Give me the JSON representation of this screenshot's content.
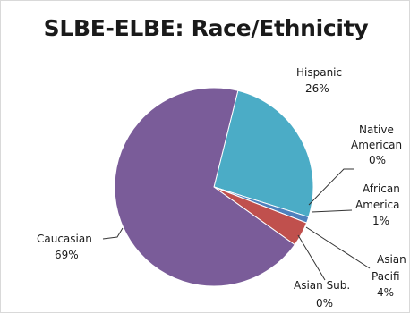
{
  "chart_data": {
    "type": "pie",
    "title": "SLBE-ELBE: Race/Ethnicity",
    "categories": [
      "Hispanic",
      "Native American",
      "African American",
      "Asian Sub.",
      "Asian Pacific",
      "Caucasian"
    ],
    "values": [
      26,
      0,
      1,
      0,
      4,
      69
    ],
    "value_labels": [
      "26%",
      "0%",
      "1%",
      "0%",
      "4%",
      "69%"
    ],
    "colors": [
      "#4bacc6",
      "#8064a2",
      "#4f81bd",
      "#f79646",
      "#c0504d",
      "#7a5c99"
    ],
    "visible_label_text": {
      "hispanic": [
        "Hispanic",
        "26%"
      ],
      "native_american": [
        "Native",
        "American",
        "0%"
      ],
      "african_american": [
        "African",
        "America",
        "1%"
      ],
      "asian_pacific": [
        "Asian",
        "Pacifi",
        "4%"
      ],
      "asian_sub": [
        "Asian Sub.",
        "0%"
      ],
      "caucasian": [
        "Caucasian",
        "69%"
      ]
    },
    "legend": "none",
    "start_angle_deg": 14,
    "direction": "clockwise"
  }
}
